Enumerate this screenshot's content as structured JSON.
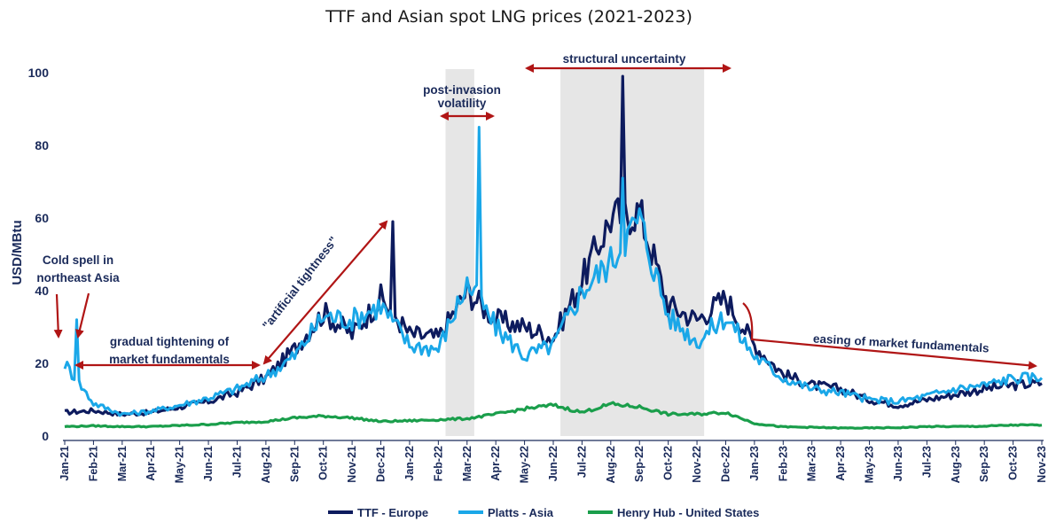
{
  "chart_data": {
    "type": "line",
    "title": "TTF and Asian spot LNG prices (2021-2023)",
    "ylabel": "USD/MBtu",
    "xlabel": "",
    "ylim": [
      0,
      100
    ],
    "yticks": [
      0,
      20,
      40,
      60,
      80,
      100
    ],
    "x": [
      "Jan-21",
      "Feb-21",
      "Mar-21",
      "Apr-21",
      "May-21",
      "Jun-21",
      "Jul-21",
      "Aug-21",
      "Sep-21",
      "Oct-21",
      "Nov-21",
      "Dec-21",
      "Jan-22",
      "Feb-22",
      "Mar-22",
      "Apr-22",
      "May-22",
      "Jun-22",
      "Jul-22",
      "Aug-22",
      "Sep-22",
      "Oct-22",
      "Nov-22",
      "Dec-22",
      "Jan-23",
      "Feb-23",
      "Mar-23",
      "Apr-23",
      "May-23",
      "Jun-23",
      "Jul-23",
      "Aug-23",
      "Sep-23",
      "Oct-23",
      "Nov-23"
    ],
    "series": [
      {
        "name": "TTF - Europe",
        "color": "#0d1b5e",
        "values": [
          6.5,
          7.0,
          6.0,
          6.5,
          8.0,
          9.5,
          12.0,
          16.0,
          24.0,
          34.0,
          28.0,
          38.0,
          28.0,
          27.0,
          40.0,
          32.0,
          30.0,
          27.0,
          43.0,
          60.0,
          62.0,
          36.0,
          32.0,
          38.0,
          25.0,
          17.0,
          14.0,
          13.0,
          10.0,
          8.5,
          10.0,
          11.5,
          13.0,
          14.0,
          14.5
        ]
      },
      {
        "name": "Platts - Asia",
        "color": "#1aa7e8",
        "values": [
          20.0,
          9.0,
          6.0,
          6.8,
          8.5,
          10.5,
          13.0,
          16.5,
          22.0,
          33.0,
          32.0,
          36.0,
          25.0,
          24.0,
          42.0,
          30.0,
          22.0,
          25.0,
          40.0,
          48.0,
          60.0,
          33.0,
          26.0,
          33.0,
          22.0,
          16.0,
          13.0,
          12.0,
          10.0,
          9.5,
          11.0,
          13.0,
          14.0,
          16.0,
          16.0
        ]
      },
      {
        "name": "Henry Hub - United States",
        "color": "#1a9e4b",
        "values": [
          2.6,
          2.8,
          2.6,
          2.6,
          2.9,
          3.2,
          3.7,
          4.0,
          5.0,
          5.5,
          5.0,
          4.0,
          4.2,
          4.5,
          4.8,
          6.0,
          7.5,
          8.5,
          6.5,
          8.8,
          8.0,
          6.0,
          6.0,
          6.5,
          3.5,
          2.5,
          2.4,
          2.2,
          2.2,
          2.3,
          2.6,
          2.6,
          2.7,
          3.0,
          3.0
        ]
      }
    ],
    "peaks": [
      {
        "series": "Platts - Asia",
        "x": "Jan-21",
        "value": 32
      },
      {
        "series": "TTF - Europe",
        "x": "Dec-21",
        "value": 59
      },
      {
        "series": "Platts - Asia",
        "x": "Mar-22",
        "value": 85
      },
      {
        "series": "TTF - Europe",
        "x": "Aug-22",
        "value": 99
      },
      {
        "series": "Platts - Asia",
        "x": "Aug-22",
        "value": 71
      }
    ],
    "shaded_periods": [
      {
        "from": "Feb-22",
        "to": "Mar-22"
      },
      {
        "from": "Jun-22",
        "to": "Nov-22"
      }
    ],
    "annotations": [
      {
        "text": "Cold spell in",
        "text2": "northeast Asia"
      },
      {
        "text": "gradual tightening of",
        "text2": "market fundamentals"
      },
      {
        "text": "\"artificial tightness\""
      },
      {
        "text": "post-invasion",
        "text2": "volatility"
      },
      {
        "text": "structural uncertainty"
      },
      {
        "text": "easing of market fundamentals"
      }
    ],
    "grid": false,
    "legend_position": "bottom"
  }
}
